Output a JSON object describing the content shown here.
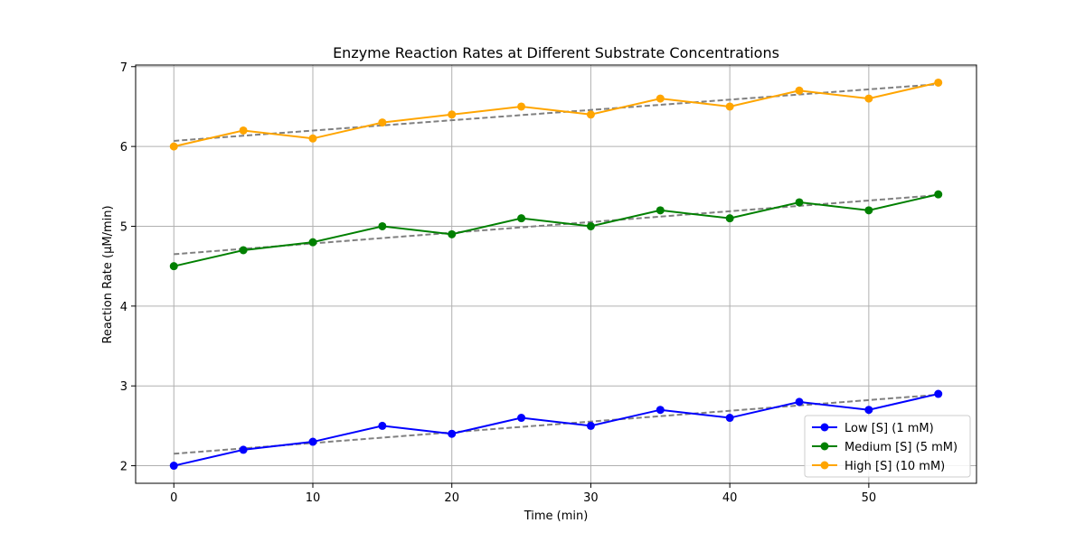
{
  "chart_data": {
    "type": "line",
    "title": "Enzyme Reaction Rates at Different Substrate Concentrations",
    "xlabel": "Time (min)",
    "ylabel": "Reaction Rate (µM/min)",
    "xlim": [
      -2.75,
      57.75
    ],
    "ylim": [
      1.78,
      7.02
    ],
    "xticks": [
      0,
      10,
      20,
      30,
      40,
      50
    ],
    "yticks": [
      2,
      3,
      4,
      5,
      6,
      7
    ],
    "grid": true,
    "legend_position": "lower-right",
    "x": [
      0,
      5,
      10,
      15,
      20,
      25,
      30,
      35,
      40,
      45,
      50,
      55
    ],
    "series": [
      {
        "name": "Low [S] (1 mM)",
        "color": "#0000ff",
        "values": [
          2.0,
          2.2,
          2.3,
          2.5,
          2.4,
          2.6,
          2.5,
          2.7,
          2.6,
          2.8,
          2.7,
          2.9
        ],
        "trend": [
          2.15,
          2.89
        ]
      },
      {
        "name": "Medium [S] (5 mM)",
        "color": "#008000",
        "values": [
          4.5,
          4.7,
          4.8,
          5.0,
          4.9,
          5.1,
          5.0,
          5.2,
          5.1,
          5.3,
          5.2,
          5.4
        ],
        "trend": [
          4.65,
          5.39
        ]
      },
      {
        "name": "High [S] (10 mM)",
        "color": "#ffa500",
        "values": [
          6.0,
          6.2,
          6.1,
          6.3,
          6.4,
          6.5,
          6.4,
          6.6,
          6.5,
          6.7,
          6.6,
          6.8
        ],
        "trend": [
          6.07,
          6.78
        ]
      }
    ],
    "trend_color": "#808080"
  }
}
